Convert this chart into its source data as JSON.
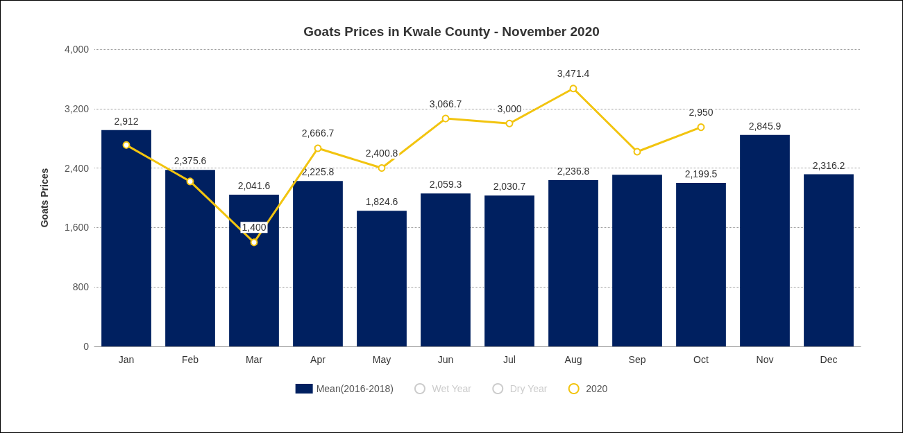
{
  "chart_data": {
    "type": "bar",
    "title": "Goats Prices in Kwale County - November 2020",
    "ylabel": "Goats Prices",
    "categories": [
      "Jan",
      "Feb",
      "Mar",
      "Apr",
      "May",
      "Jun",
      "Jul",
      "Aug",
      "Sep",
      "Oct",
      "Nov",
      "Dec"
    ],
    "series": [
      {
        "name": "Mean(2016-2018)",
        "color": "#002060",
        "values": [
          2912,
          2375.6,
          2041.6,
          2225.8,
          1824.6,
          2059.3,
          2030.7,
          2236.8,
          2310,
          2199.5,
          2845.9,
          2316.2
        ],
        "value_labels": [
          "2,912",
          "2,375.6",
          "2,041.6",
          "2,225.8",
          "1,824.6",
          "2,059.3",
          "2,030.7",
          "2,236.8",
          null,
          "2,199.5",
          "2,845.9",
          "2,316.2"
        ]
      },
      {
        "name": "Wet Year",
        "type": "line",
        "color": "#cccccc",
        "values": [
          null,
          null,
          null,
          null,
          null,
          null,
          null,
          null,
          null,
          null,
          null,
          null
        ]
      },
      {
        "name": "Dry Year",
        "type": "line",
        "color": "#cccccc",
        "values": [
          null,
          null,
          null,
          null,
          null,
          null,
          null,
          null,
          null,
          null,
          null,
          null
        ]
      },
      {
        "name": "2020",
        "type": "line",
        "color": "#f2c40f",
        "values": [
          2710,
          2220,
          1400,
          2666.7,
          2400.8,
          3066.7,
          3000,
          3471.4,
          2620,
          2950,
          null,
          null
        ],
        "value_labels": [
          null,
          null,
          "1,400",
          "2,666.7",
          "2,400.8",
          "3,066.7",
          "3,000",
          "3,471.4",
          null,
          "2,950",
          null,
          null
        ]
      }
    ],
    "ylim": [
      0,
      4000
    ],
    "yticks": [
      {
        "value": 0,
        "label": "0"
      },
      {
        "value": 800,
        "label": "800"
      },
      {
        "value": 1600,
        "label": "1,600"
      },
      {
        "value": 2400,
        "label": "2,400"
      },
      {
        "value": 3200,
        "label": "3,200"
      },
      {
        "value": 4000,
        "label": "4,000"
      }
    ],
    "grid": "y",
    "legend": "bottom",
    "marker": "circle"
  }
}
